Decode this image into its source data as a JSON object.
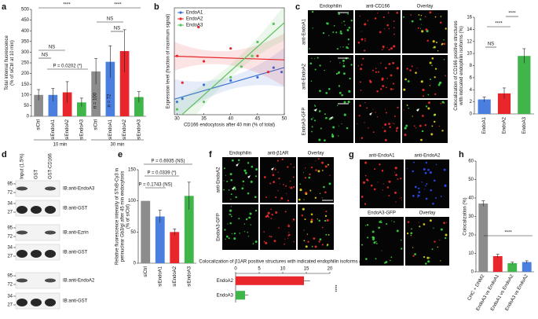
{
  "panel_labels": [
    "a",
    "b",
    "c",
    "d",
    "e",
    "f",
    "g",
    "h"
  ],
  "chart_data": [
    {
      "type": "bar",
      "ylabel": [
        "Total internal fluorescence",
        "(% of siCtrl at 10 min)"
      ],
      "categories": [
        "siCtrl",
        "siEndoA1",
        "siEndoA2",
        "siEndoA3",
        "siCtrl",
        "siEndoA1",
        "siEndoA2",
        "siEndoA3"
      ],
      "values": [
        100,
        100,
        112,
        65,
        210,
        255,
        305,
        90
      ],
      "errors": [
        25,
        30,
        50,
        20,
        60,
        75,
        100,
        25
      ],
      "colors": [
        "#8c8c8c",
        "#4a7fe0",
        "#e8262b",
        "#3fb54a",
        "#8c8c8c",
        "#4a7fe0",
        "#e8262b",
        "#3fb54a"
      ],
      "groups": [
        "10 min",
        "30 min"
      ],
      "ylim": [
        0,
        500
      ],
      "yticks": [
        0,
        50,
        100,
        150,
        200,
        250,
        300,
        350,
        400,
        450,
        500
      ],
      "annotations": [
        "****",
        "****",
        "NS",
        "NS",
        "P = 0.0202 (*)",
        "NS",
        "NS",
        "n = 100",
        "n = 72"
      ]
    },
    {
      "type": "scatter",
      "xlabel": "CD166 endocytosis after 40 min (% of total)",
      "ylabel": [
        "Expression level (fraction of maximum signal)"
      ],
      "xlim": [
        29.5,
        50
      ],
      "xticks": [
        30,
        35,
        40,
        45,
        50
      ],
      "ylim": [
        0,
        1
      ],
      "legend": "upper left",
      "series": [
        {
          "name": "EndoA1",
          "color": "#3a6fd8",
          "x": [
            30,
            31,
            35,
            40,
            45,
            48,
            49.5
          ],
          "values": [
            0.12,
            0.15,
            0.28,
            0.32,
            0.35,
            0.44,
            0.4
          ]
        },
        {
          "name": "EndoA2",
          "color": "#e8262b",
          "x": [
            30,
            31,
            34,
            35,
            40,
            45,
            47
          ],
          "values": [
            0.55,
            0.3,
            0.82,
            0.5,
            0.62,
            0.55,
            0.4
          ]
        },
        {
          "name": "EndoA3",
          "color": "#5cc05c",
          "x": [
            30,
            35,
            40,
            42,
            44,
            45,
            48
          ],
          "values": [
            0.05,
            0.12,
            0.35,
            0.45,
            0.55,
            0.68,
            0.85
          ]
        }
      ]
    },
    {
      "type": "bar",
      "ylabel": [
        "Colocalization of CD166 positive structures",
        "with indicated endophilin isoforms (%)"
      ],
      "categories": [
        "EndoA1",
        "EndoA2",
        "EndoA3"
      ],
      "values": [
        2.4,
        3.4,
        9.6
      ],
      "errors": [
        0.4,
        0.9,
        1.2
      ],
      "colors": [
        "#4a7fe0",
        "#e8262b",
        "#3fb54a"
      ],
      "ylim": [
        0,
        16
      ],
      "yticks": [
        0,
        2,
        4,
        6,
        8,
        10,
        12,
        14,
        16
      ],
      "annotations": [
        "NS",
        "****",
        "****"
      ]
    },
    {
      "type": "bar",
      "ylabel": [
        "Relative fluorescence intensity of STxB-Cy3 in",
        "perinuclear Gb3/gl after 45 min endocytosis",
        "(% of siCtrl)"
      ],
      "categories": [
        "siCtrl",
        "siEndoA1",
        "siEndoA2",
        "siEndoA3"
      ],
      "values": [
        100,
        75,
        50,
        108
      ],
      "errors": [
        0,
        10,
        5,
        22
      ],
      "colors": [
        "#8c8c8c",
        "#4a7fe0",
        "#e8262b",
        "#3fb54a"
      ],
      "ylim": [
        0,
        150
      ],
      "yticks": [
        0,
        50,
        100,
        150
      ],
      "annotations": [
        "P = 0.6935 (NS)",
        "P = 0.0339 (*)",
        "P = 0.1743 (NS)"
      ]
    },
    {
      "type": "bar",
      "orientation": "horizontal",
      "title": "Colocalization of β1AR positive structures with indicated endophilin isoforms (%)",
      "categories": [
        "EndoA2",
        "EndoA3"
      ],
      "values": [
        14.5,
        2.0
      ],
      "errors": [
        1.3,
        0.7
      ],
      "colors": [
        "#e8262b",
        "#3fb54a"
      ],
      "xlim": [
        0,
        20
      ],
      "xticks": [
        0,
        5,
        10,
        15,
        20
      ],
      "annotations": [
        "****"
      ]
    },
    {
      "type": "bar",
      "ylabel": [
        "Colocalization (%)"
      ],
      "categories": [
        "CHC + DNM2",
        "EndoA3 vs EndoA1",
        "EndoA1 vs EndoA2",
        "EndoA3 vs EndoA2"
      ],
      "values": [
        37,
        8.5,
        4.7,
        5.3
      ],
      "errors": [
        1.5,
        1,
        0.6,
        0.7
      ],
      "colors": [
        "#8c8c8c",
        "#e8262b",
        "#3fb54a",
        "#4a7fe0"
      ],
      "ylim": [
        0,
        60
      ],
      "yticks": [
        0,
        10,
        20,
        30,
        40,
        50,
        60
      ],
      "annotations": [
        "****"
      ]
    }
  ],
  "image_panels": [
    {
      "columns": [
        "Endophilin",
        "anti-CD166",
        "Overlay"
      ],
      "rows": [
        "anti-EndoA1",
        "anti-EndoA2",
        "EndoA3-GFP"
      ]
    },
    {
      "columns": [
        "Endophilin",
        "anti-β1AR",
        "Overlay"
      ],
      "rows": [
        "anti-EndoA2",
        "EndoA3-GFP"
      ]
    },
    {
      "cells": [
        "anti-EndoA1",
        "anti-EndoA2",
        "EndoA3-GFP",
        "Overlay"
      ]
    }
  ],
  "blot": {
    "lanes": [
      "Input (1.5%)",
      "GST",
      "GST-CD166"
    ],
    "rows": [
      {
        "label": "IB:anti-EndoA3",
        "markers": [
          95,
          72
        ]
      },
      {
        "label": "IB:anti-GST",
        "markers": [
          34,
          27
        ]
      },
      {
        "label": "IB:anti-Ezrin",
        "markers": [
          95,
          72
        ]
      },
      {
        "label": "IB:anti-GST",
        "markers": [
          34,
          27
        ]
      },
      {
        "label": "IB:anti-EndoA2",
        "markers": [
          95,
          72
        ]
      },
      {
        "label": "IB:anti-GST",
        "markers": [
          34,
          27
        ]
      }
    ]
  }
}
